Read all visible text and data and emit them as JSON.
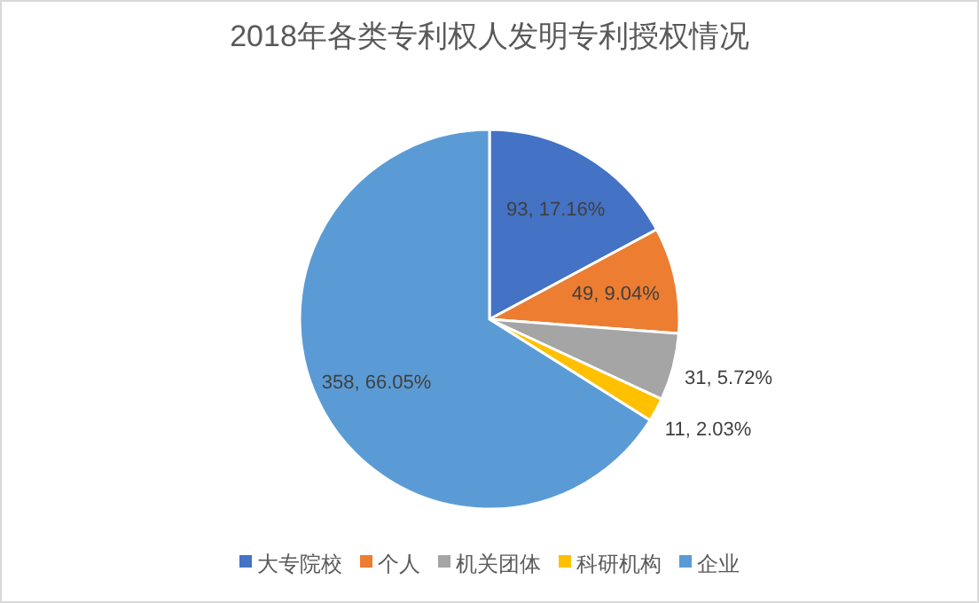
{
  "chart_data": {
    "type": "pie",
    "title": "2018年各类专利权人发明专利授权情况",
    "categories": [
      "大专院校",
      "个人",
      "机关团体",
      "科研机构",
      "企业"
    ],
    "values": [
      93,
      49,
      31,
      11,
      358
    ],
    "colors": [
      "#4472c4",
      "#ed7d31",
      "#a5a5a5",
      "#ffc000",
      "#5b9bd5"
    ],
    "value_labels": [
      "93, 17.16%",
      "49, 9.04%",
      "31, 5.72%",
      "11, 2.03%",
      "358, 66.05%"
    ],
    "legend": "bottom"
  }
}
